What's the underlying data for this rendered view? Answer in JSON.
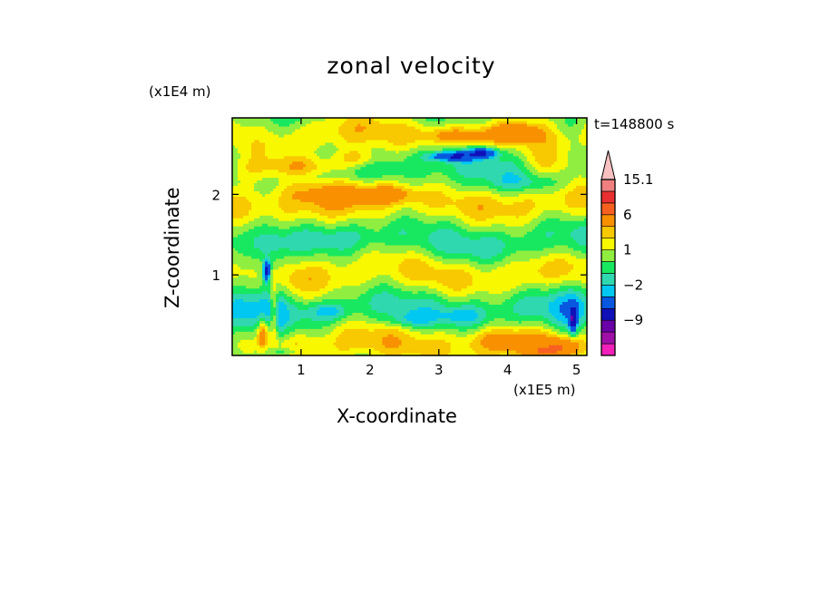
{
  "chart_data": {
    "type": "heatmap",
    "title": "zonal velocity",
    "xlabel": "X-coordinate",
    "ylabel": "Z-coordinate",
    "x_unit": "(x1E5 m)",
    "y_unit": "(x1E4 m)",
    "time_label": "t=148800 s",
    "xlim": [
      0,
      5.15
    ],
    "ylim": [
      0,
      2.95
    ],
    "x_ticks": [
      1,
      2,
      3,
      4,
      5
    ],
    "x_tick_labels": [
      "1",
      "2",
      "3",
      "4",
      "5"
    ],
    "y_ticks": [
      1,
      2
    ],
    "y_tick_labels": [
      "1",
      "2"
    ],
    "colorbar": {
      "levels": [
        -15,
        -12,
        -9,
        -6,
        -3,
        -2,
        -1,
        0,
        1,
        2,
        3,
        6,
        9,
        12,
        15.1
      ],
      "tick_labels": [
        {
          "value": 15.1,
          "label": "15.1"
        },
        {
          "value": 6,
          "label": "6"
        },
        {
          "value": 1,
          "label": "1"
        },
        {
          "value": -2,
          "label": "−2"
        },
        {
          "value": -9,
          "label": "−9"
        }
      ],
      "colors": [
        "#f020b8",
        "#a010a8",
        "#6a00a8",
        "#1010b8",
        "#0858e0",
        "#00c8f0",
        "#30d8b0",
        "#18e860",
        "#90ee40",
        "#f8f800",
        "#f8c800",
        "#f89000",
        "#f86020",
        "#e83030",
        "#f08080",
        "#f8c0c0"
      ],
      "extend": "max"
    },
    "features": [
      {
        "cx": 0.05,
        "cz": 0.15,
        "rx": 0.55,
        "rz": 0.75,
        "v": -2
      },
      {
        "cx": 0.3,
        "cz": 2.75,
        "rx": 0.6,
        "rz": 0.2,
        "v": -1.5
      },
      {
        "cx": 0.25,
        "cz": 2.3,
        "rx": 0.5,
        "rz": 0.18,
        "v": 2.5
      },
      {
        "cx": 1.1,
        "cz": 2.35,
        "rx": 0.55,
        "rz": 0.12,
        "v": 2.8
      },
      {
        "cx": 1.8,
        "cz": 2.45,
        "rx": 0.35,
        "rz": 0.12,
        "v": 2.8
      },
      {
        "cx": 1.5,
        "cz": 2.05,
        "rx": 0.9,
        "rz": 0.16,
        "v": 2.2
      },
      {
        "cx": 2.25,
        "cz": 2.0,
        "rx": 0.35,
        "rz": 0.1,
        "v": 2.5
      },
      {
        "cx": 3.0,
        "cz": 2.95,
        "rx": 0.95,
        "rz": 0.35,
        "v": -0.5
      },
      {
        "cx": 3.35,
        "cz": 2.73,
        "rx": 0.55,
        "rz": 0.1,
        "v": 2.8
      },
      {
        "cx": 3.45,
        "cz": 2.53,
        "rx": 0.7,
        "rz": 0.18,
        "v": -1.5
      },
      {
        "cx": 3.2,
        "cz": 2.48,
        "rx": 0.3,
        "rz": 0.055,
        "v": -6
      },
      {
        "cx": 3.65,
        "cz": 2.52,
        "rx": 0.2,
        "rz": 0.055,
        "v": -6
      },
      {
        "cx": 4.15,
        "cz": 2.78,
        "rx": 0.3,
        "rz": 0.1,
        "v": 2.8
      },
      {
        "cx": 4.85,
        "cz": 2.85,
        "rx": 0.3,
        "rz": 0.15,
        "v": -1.5
      },
      {
        "cx": 4.6,
        "cz": 2.4,
        "rx": 0.4,
        "rz": 0.2,
        "v": 2.5
      },
      {
        "cx": 4.3,
        "cz": 2.15,
        "rx": 0.6,
        "rz": 0.12,
        "v": -1.5
      },
      {
        "cx": 2.9,
        "cz": 1.75,
        "rx": 1.3,
        "rz": 0.2,
        "v": -0.5
      },
      {
        "cx": 1.5,
        "cz": 1.45,
        "rx": 0.8,
        "rz": 0.12,
        "v": -0.5
      },
      {
        "cx": 3.8,
        "cz": 1.3,
        "rx": 0.9,
        "rz": 0.18,
        "v": -0.5
      },
      {
        "cx": 2.2,
        "cz": 1.0,
        "rx": 1.2,
        "rz": 0.18,
        "v": -0.5
      },
      {
        "cx": 3.3,
        "cz": 0.75,
        "rx": 1.0,
        "rz": 0.2,
        "v": -0.5
      },
      {
        "cx": 3.35,
        "cz": 0.5,
        "rx": 0.35,
        "rz": 0.12,
        "v": -2
      },
      {
        "cx": 1.4,
        "cz": 0.55,
        "rx": 0.3,
        "rz": 0.1,
        "v": -2
      },
      {
        "cx": 2.6,
        "cz": 0.45,
        "rx": 0.35,
        "rz": 0.1,
        "v": -2
      },
      {
        "cx": 0.55,
        "cz": 0.8,
        "rx": 0.22,
        "rz": 0.8,
        "v": -2
      },
      {
        "cx": 0.5,
        "cz": 1.05,
        "rx": 0.05,
        "rz": 0.12,
        "v": -8
      },
      {
        "cx": 0.6,
        "cz": 0.5,
        "rx": 0.06,
        "rz": 0.35,
        "v": 4
      },
      {
        "cx": 0.45,
        "cz": 0.3,
        "rx": 0.08,
        "rz": 0.2,
        "v": 5
      },
      {
        "cx": 4.9,
        "cz": 0.55,
        "rx": 0.35,
        "rz": 0.55,
        "v": -2
      },
      {
        "cx": 4.95,
        "cz": 0.45,
        "rx": 0.05,
        "rz": 0.15,
        "v": -8
      },
      {
        "cx": 4.8,
        "cz": 0.12,
        "rx": 0.25,
        "rz": 0.12,
        "v": 4
      },
      {
        "cx": 4.55,
        "cz": 0.05,
        "rx": 0.3,
        "rz": 0.08,
        "v": 3
      },
      {
        "cx": 4.0,
        "cz": 0.2,
        "rx": 0.5,
        "rz": 0.12,
        "v": 2.2
      },
      {
        "cx": 0.75,
        "cz": 0.05,
        "rx": 0.3,
        "rz": 0.06,
        "v": -2
      }
    ]
  }
}
